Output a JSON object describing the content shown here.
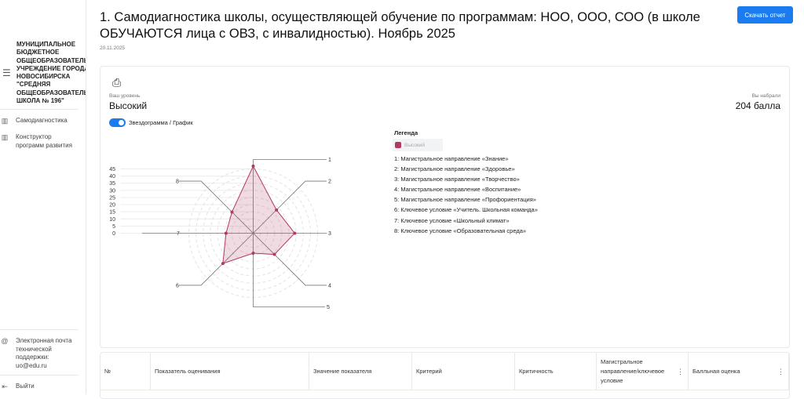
{
  "sidebar": {
    "org_name_lines": [
      "МУНИЦИПАЛЬНОЕ",
      "БЮДЖЕТНОЕ",
      "ОБЩЕОБРАЗОВАТЕЛЬН",
      "УЧРЕЖДЕНИЕ ГОРОДА",
      "НОВОСИБИРСКА",
      "\"СРЕДНЯЯ",
      "ОБЩЕОБРАЗОВАТЕЛЬН",
      "ШКОЛА № 196\""
    ],
    "menu_icon": "hamburger-icon",
    "items": [
      {
        "label": "Самодиагностика",
        "icon": "books-icon"
      },
      {
        "label": "Конструктор программ развития",
        "icon": "books-icon"
      }
    ],
    "support": "Электронная почта технической поддержки: uo@edu.ru",
    "logout": "Выйти"
  },
  "header": {
    "title": "1. Самодиагностика школы, осуществляющей обучение по программам: НОО, ООО, СОО (в школе ОБУЧАЮТСЯ лица с ОВЗ, с инвалидностью). Ноябрь 2025",
    "date": "20.11.2025",
    "download_label": "Скачать отчет"
  },
  "result": {
    "level_label": "Ваш уровень",
    "level": "Высокий",
    "score_label": "Вы набрали",
    "score": "204 балла",
    "toggle_label": "Звездограмма / График",
    "toggle_on": true
  },
  "legend": {
    "title": "Легенда",
    "series": "Высокий",
    "items": [
      "1: Магистральное направление «Знание»",
      "2: Магистральное направление «Здоровье»",
      "3: Магистральное направление «Творчество»",
      "4: Магистральное направление «Воспитание»",
      "5: Магистральное направление «Профориентация»",
      "6: Ключевое условие «Учитель. Школьная команда»",
      "7: Ключевое условие «Школьный климат»",
      "8: Ключевое условие «Образовательная среда»"
    ]
  },
  "chart_data": {
    "type": "radar",
    "categories": [
      "1",
      "2",
      "3",
      "4",
      "5",
      "6",
      "7",
      "8"
    ],
    "series": [
      {
        "name": "Высокий",
        "values": [
          47,
          23,
          29,
          21,
          14,
          30,
          19,
          21
        ],
        "color": "#b23a62"
      }
    ],
    "yticks": [
      0,
      5,
      10,
      15,
      20,
      25,
      30,
      35,
      40,
      45
    ],
    "ylim": [
      0,
      45
    ]
  },
  "table": {
    "columns": [
      "№",
      "Показатель оценивания",
      "Значение показателя",
      "Критерий",
      "Критичность",
      "Магистральное направление/ключевое условие",
      "Балльная оценка"
    ]
  },
  "colors": {
    "accent": "#1a7cf0",
    "series": "#b23a62"
  }
}
